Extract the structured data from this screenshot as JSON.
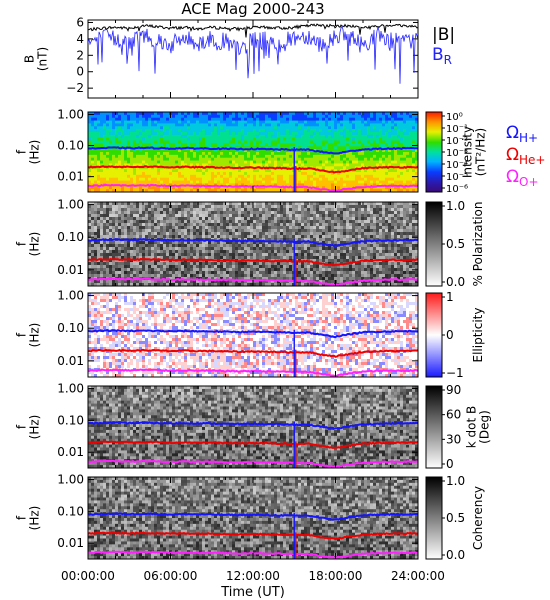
{
  "chart_data": {
    "type": "line",
    "title": "ACE Mag 2000-243",
    "xlabel": "Time (UT)",
    "xticks": [
      "00:00:00",
      "06:00:00",
      "12:00:00",
      "18:00:00",
      "24:00:00"
    ],
    "xlim_hours": [
      0,
      24
    ],
    "colors": {
      "B": "#000000",
      "BR": "#2222ff",
      "H": "#1515ff",
      "He": "#ee0000",
      "O": "#ff22ff"
    },
    "panels": [
      {
        "name": "magnetic-field",
        "ylabel": "B\n(nT)",
        "yticks": [
          "6",
          "4",
          "2",
          "0",
          "−2"
        ],
        "ylim": [
          -3.2,
          6.3
        ],
        "legend": [
          {
            "label": "|B|",
            "color": "#000000"
          },
          {
            "label": "B",
            "sub": "R",
            "color": "#2222ff"
          }
        ],
        "series": [
          {
            "name": "|B|",
            "values_approx": [
              5.1,
              5.3,
              5.4,
              5.3,
              5.6,
              5.5,
              5.3,
              5.4,
              5.2,
              5.4,
              5.3,
              5.2,
              5.4,
              5.4,
              5.3,
              5.4,
              5.6,
              5.7,
              5.5,
              5.6,
              5.4,
              5.5,
              5.7,
              5.6,
              5.5
            ]
          },
          {
            "name": "B_R",
            "values_approx": [
              3.5,
              4.2,
              4.0,
              3.3,
              4.5,
              4.0,
              3.2,
              4.1,
              3.5,
              4.0,
              3.6,
              2.5,
              3.9,
              3.8,
              3.3,
              4.2,
              4.4,
              3.3,
              4.6,
              4.3,
              3.2,
              4.5,
              4.0,
              3.5,
              4.1
            ]
          }
        ]
      },
      {
        "name": "intensity",
        "ylabel": "f\n(Hz)",
        "yticks": [
          "1.00",
          "0.10",
          "0.01"
        ],
        "colorbar_label": "Intensity\n(nT²/Hz)",
        "colorbar_ticks": [
          "10⁰",
          "10⁻¹",
          "10⁻²",
          "10⁻³",
          "10⁻⁴",
          "10⁻⁵",
          "10⁻⁶"
        ],
        "legend": [
          {
            "label": "Ω",
            "sub": "H+",
            "color": "#1515ff"
          },
          {
            "label": "Ω",
            "sub": "He+",
            "color": "#ee0000"
          },
          {
            "label": "Ω",
            "sub": "O+",
            "color": "#ff22ff"
          }
        ]
      },
      {
        "name": "polarization",
        "ylabel": "f\n(Hz)",
        "yticks": [
          "1.00",
          "0.10",
          "0.01"
        ],
        "colorbar_label": "% Polarization",
        "colorbar_ticks": [
          "1.0",
          "0.5",
          "0.0"
        ]
      },
      {
        "name": "ellipticity",
        "ylabel": "f\n(Hz)",
        "yticks": [
          "1.00",
          "0.10",
          "0.01"
        ],
        "colorbar_label": "Ellipticity",
        "colorbar_ticks": [
          "1",
          "0",
          "−1"
        ]
      },
      {
        "name": "k-dot-b",
        "ylabel": "f\n(Hz)",
        "yticks": [
          "1.00",
          "0.10",
          "0.01"
        ],
        "colorbar_label": "k dot B\n(Deg)",
        "colorbar_ticks": [
          "90",
          "60",
          "30",
          "0"
        ]
      },
      {
        "name": "coherency",
        "ylabel": "f\n(Hz)",
        "yticks": [
          "1.00",
          "0.10",
          "0.01"
        ],
        "colorbar_label": "Coherency",
        "colorbar_ticks": [
          "1.0",
          "0.5",
          "0.0"
        ]
      }
    ],
    "gyrofrequency_lines_hz_approx": {
      "H+": [
        0.08,
        0.083,
        0.085,
        0.082,
        0.084,
        0.083,
        0.08,
        0.082,
        0.081,
        0.08,
        0.078,
        0.077,
        0.078,
        0.076,
        0.075,
        0.073,
        0.074,
        0.062,
        0.055,
        0.065,
        0.075,
        0.078,
        0.08,
        0.081,
        0.082
      ],
      "He+": [
        0.02,
        0.021,
        0.021,
        0.0205,
        0.021,
        0.0208,
        0.02,
        0.0205,
        0.02,
        0.02,
        0.0195,
        0.019,
        0.0195,
        0.019,
        0.0188,
        0.018,
        0.0185,
        0.0155,
        0.0138,
        0.016,
        0.0188,
        0.0195,
        0.02,
        0.02,
        0.0205
      ],
      "O+": [
        0.005,
        0.0052,
        0.0053,
        0.0051,
        0.0053,
        0.0052,
        0.005,
        0.0051,
        0.005,
        0.005,
        0.0049,
        0.0048,
        0.0049,
        0.0048,
        0.0047,
        0.0046,
        0.0046,
        0.0039,
        0.0035,
        0.0041,
        0.0047,
        0.0049,
        0.005,
        0.005,
        0.0051
      ]
    }
  }
}
